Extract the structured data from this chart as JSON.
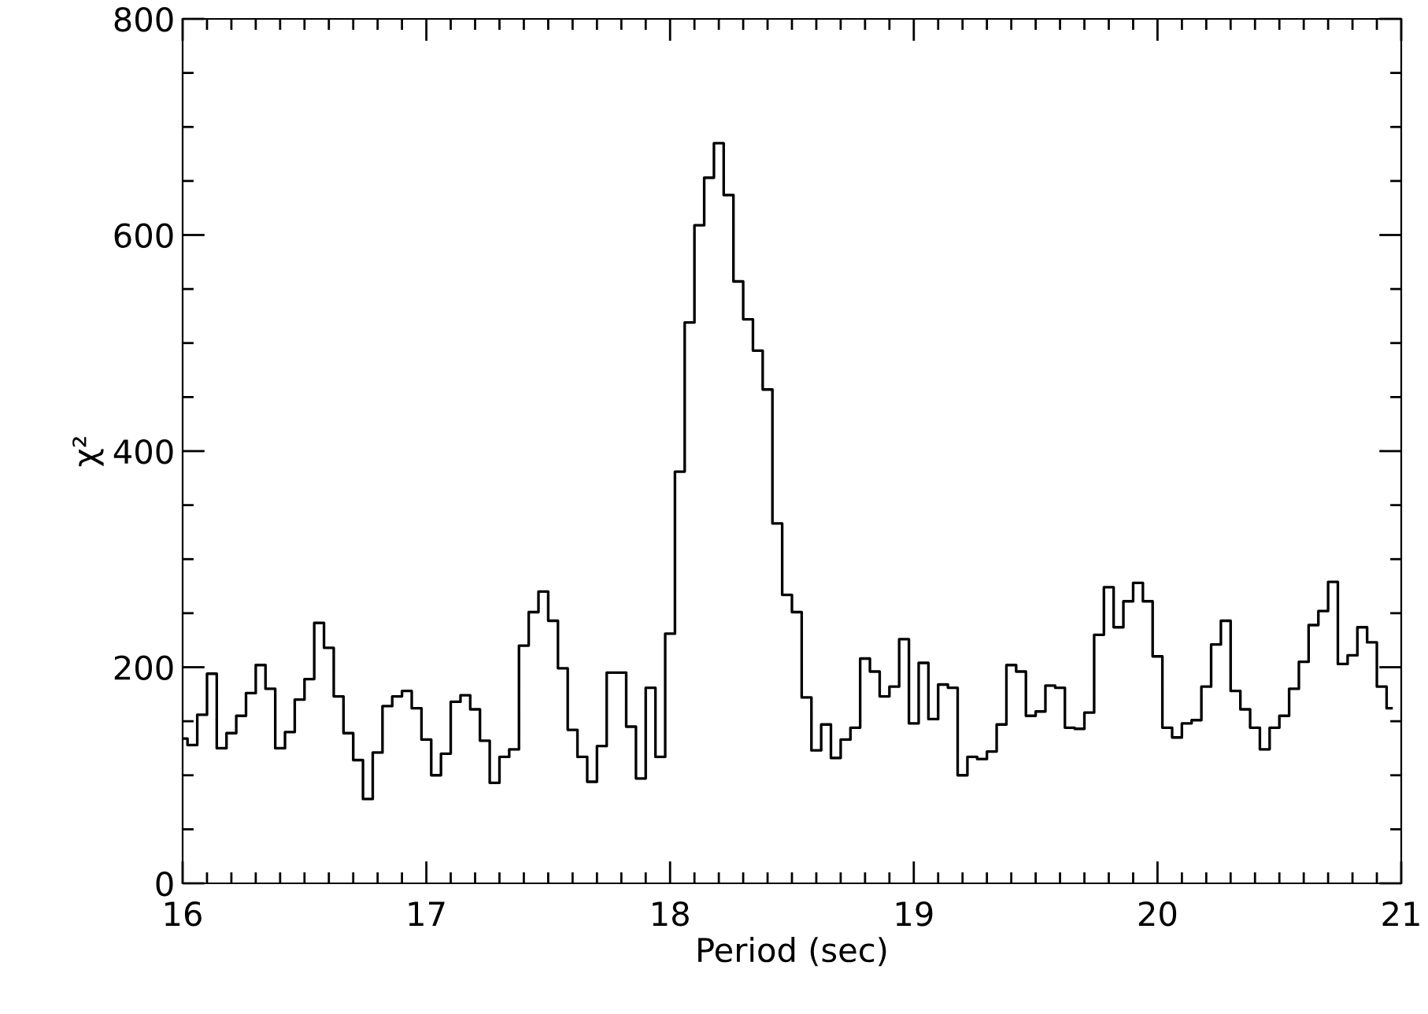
{
  "chart_data": {
    "type": "step",
    "xlabel": "Period (sec)",
    "ylabel": "χ²",
    "xlim": [
      16,
      21
    ],
    "ylim": [
      0,
      800
    ],
    "xticks": [
      16,
      17,
      18,
      19,
      20,
      21,
      {
        "value": 16.1,
        "label": null
      },
      {
        "value": 16.2,
        "label": null
      },
      {
        "value": 16.3,
        "label": null
      },
      {
        "value": 16.4,
        "label": null
      },
      {
        "value": 16.5,
        "label": null
      },
      {
        "value": 16.6,
        "label": null
      },
      {
        "value": 16.7,
        "label": null
      },
      {
        "value": 16.8,
        "label": null
      },
      {
        "value": 16.9,
        "label": null
      },
      {
        "value": 17.1,
        "label": null
      },
      {
        "value": 17.2,
        "label": null
      },
      {
        "value": 17.3,
        "label": null
      },
      {
        "value": 17.4,
        "label": null
      },
      {
        "value": 17.5,
        "label": null
      },
      {
        "value": 17.6,
        "label": null
      },
      {
        "value": 17.7,
        "label": null
      },
      {
        "value": 17.8,
        "label": null
      },
      {
        "value": 17.9,
        "label": null
      },
      {
        "value": 18.1,
        "label": null
      },
      {
        "value": 18.2,
        "label": null
      },
      {
        "value": 18.3,
        "label": null
      },
      {
        "value": 18.4,
        "label": null
      },
      {
        "value": 18.5,
        "label": null
      },
      {
        "value": 18.6,
        "label": null
      },
      {
        "value": 18.7,
        "label": null
      },
      {
        "value": 18.8,
        "label": null
      },
      {
        "value": 18.9,
        "label": null
      },
      {
        "value": 19.1,
        "label": null
      },
      {
        "value": 19.2,
        "label": null
      },
      {
        "value": 19.3,
        "label": null
      },
      {
        "value": 19.4,
        "label": null
      },
      {
        "value": 19.5,
        "label": null
      },
      {
        "value": 19.6,
        "label": null
      },
      {
        "value": 19.7,
        "label": null
      },
      {
        "value": 19.8,
        "label": null
      },
      {
        "value": 19.9,
        "label": null
      },
      {
        "value": 20.1,
        "label": null
      },
      {
        "value": 20.2,
        "label": null
      },
      {
        "value": 20.3,
        "label": null
      },
      {
        "value": 20.4,
        "label": null
      },
      {
        "value": 20.5,
        "label": null
      },
      {
        "value": 20.6,
        "label": null
      },
      {
        "value": 20.7,
        "label": null
      },
      {
        "value": 20.8,
        "label": null
      },
      {
        "value": 20.9,
        "label": null
      }
    ],
    "yticks": [
      0,
      200,
      400,
      600,
      800,
      {
        "value": 50,
        "label": null
      },
      {
        "value": 100,
        "label": null
      },
      {
        "value": 150,
        "label": null
      },
      {
        "value": 250,
        "label": null
      },
      {
        "value": 300,
        "label": null
      },
      {
        "value": 350,
        "label": null
      },
      {
        "value": 450,
        "label": null
      },
      {
        "value": 500,
        "label": null
      },
      {
        "value": 550,
        "label": null
      },
      {
        "value": 650,
        "label": null
      },
      {
        "value": 700,
        "label": null
      },
      {
        "value": 750,
        "label": null
      }
    ],
    "grid": false,
    "legend": false,
    "series": [
      {
        "color": "#000000",
        "x": [
          16.0,
          16.04,
          16.08,
          16.12,
          16.16,
          16.2,
          16.24,
          16.28,
          16.32,
          16.36,
          16.4,
          16.44,
          16.48,
          16.52,
          16.56,
          16.6,
          16.64,
          16.68,
          16.72,
          16.76,
          16.8,
          16.84,
          16.88,
          16.92,
          16.96,
          17.0,
          17.04,
          17.08,
          17.12,
          17.16,
          17.2,
          17.24,
          17.28,
          17.32,
          17.36,
          17.4,
          17.44,
          17.48,
          17.52,
          17.56,
          17.6,
          17.64,
          17.68,
          17.72,
          17.76,
          17.8,
          17.84,
          17.88,
          17.92,
          17.96,
          18.0,
          18.04,
          18.08,
          18.12,
          18.16,
          18.2,
          18.24,
          18.28,
          18.32,
          18.36,
          18.4,
          18.44,
          18.48,
          18.52,
          18.56,
          18.6,
          18.64,
          18.68,
          18.72,
          18.76,
          18.8,
          18.84,
          18.88,
          18.92,
          18.96,
          19.0,
          19.04,
          19.08,
          19.12,
          19.16,
          19.2,
          19.24,
          19.28,
          19.32,
          19.36,
          19.4,
          19.44,
          19.48,
          19.52,
          19.56,
          19.6,
          19.64,
          19.68,
          19.72,
          19.76,
          19.8,
          19.84,
          19.88,
          19.92,
          19.96,
          20.0,
          20.04,
          20.08,
          20.12,
          20.16,
          20.2,
          20.24,
          20.28,
          20.32,
          20.36,
          20.4,
          20.44,
          20.48,
          20.52,
          20.56,
          20.6,
          20.64,
          20.68,
          20.72,
          20.76,
          20.8,
          20.84,
          20.88,
          20.92,
          20.96
        ],
        "values": [
          134,
          128,
          156,
          194,
          125,
          139,
          155,
          176,
          202,
          180,
          125,
          140,
          170,
          189,
          241,
          218,
          173,
          139,
          114,
          78,
          121,
          164,
          173,
          178,
          162,
          133,
          100,
          120,
          168,
          174,
          161,
          132,
          93,
          117,
          124,
          220,
          251,
          270,
          243,
          199,
          142,
          117,
          94,
          127,
          195,
          195,
          145,
          97,
          181,
          117,
          231,
          381,
          519,
          609,
          653,
          685,
          637,
          557,
          522,
          493,
          457,
          333,
          267,
          251,
          172,
          123,
          147,
          116,
          133,
          144,
          208,
          196,
          173,
          182,
          226,
          148,
          204,
          152,
          184,
          181,
          100,
          117,
          115,
          122,
          147,
          202,
          196,
          155,
          159,
          183,
          181,
          144,
          143,
          158,
          230,
          274,
          237,
          261,
          278,
          261,
          210,
          144,
          135,
          148,
          151,
          182,
          221,
          243,
          178,
          161,
          144,
          124,
          144,
          155,
          180,
          205,
          239,
          252,
          279,
          203,
          211,
          237,
          223,
          182,
          162
        ]
      }
    ]
  }
}
